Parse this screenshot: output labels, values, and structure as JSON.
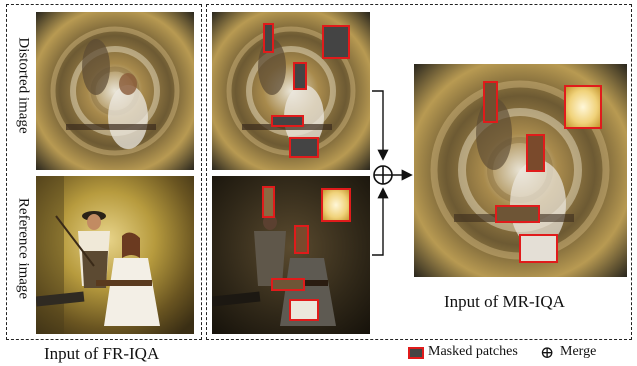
{
  "left_panel": {
    "row_labels": [
      "Distorted image",
      "Reference image"
    ],
    "caption": "Input of FR-IQA"
  },
  "right_panel": {
    "caption": "Input of MR-IQA"
  },
  "legend": {
    "masked_label": "Masked patches",
    "merge_label": "Merge",
    "merge_symbol": "⊕"
  },
  "colors": {
    "patch_border": "#e01b1b",
    "masked_fill": "#444444",
    "dash": "#222222"
  }
}
